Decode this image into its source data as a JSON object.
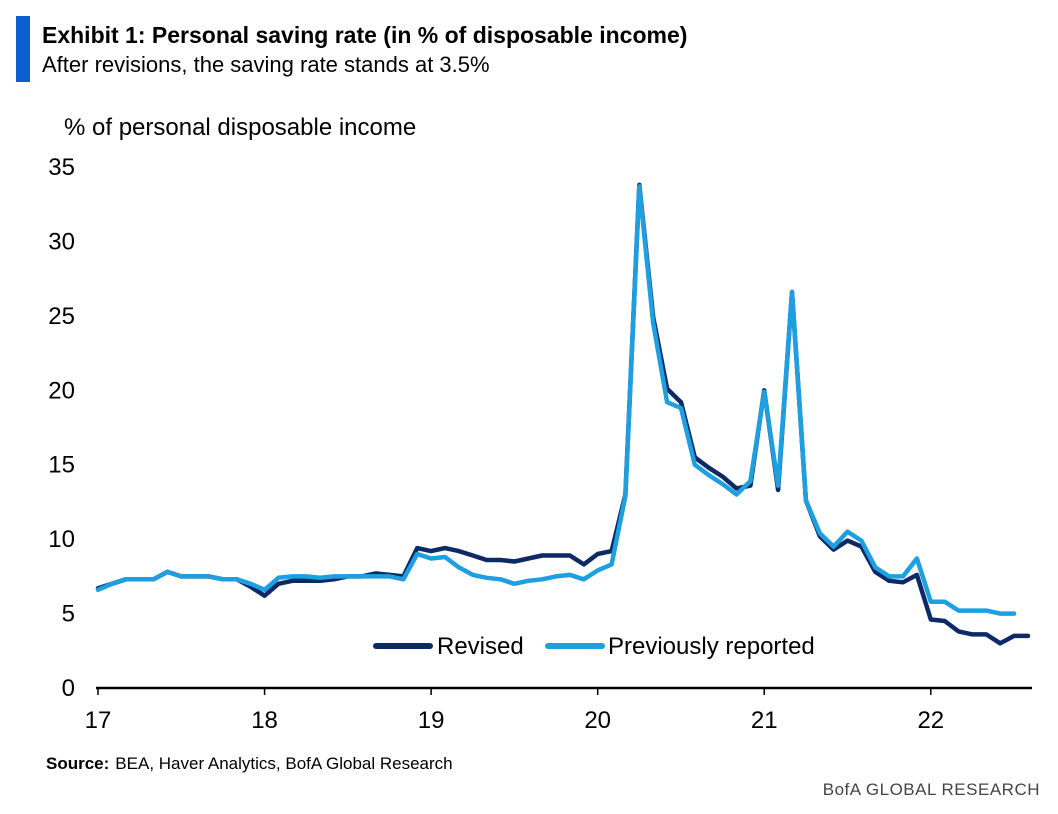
{
  "header": {
    "title": "Exhibit 1: Personal saving rate (in % of disposable income)",
    "subtitle": "After revisions, the saving rate stands at 3.5%",
    "accent_color": "#0a5fd1"
  },
  "footer": {
    "source_label": "Source:",
    "source_text": "BEA, Haver Analytics, BofA Global Research",
    "brand": "BofA GLOBAL RESEARCH"
  },
  "chart_data": {
    "type": "line",
    "title": "Exhibit 1: Personal saving rate (in % of disposable income)",
    "subtitle": "After revisions, the saving rate stands at 3.5%",
    "ylabel": "% of personal disposable income",
    "xlabel": "",
    "ylim": [
      0,
      35
    ],
    "yticks": [
      0,
      5,
      10,
      15,
      20,
      25,
      30,
      35
    ],
    "xlim": [
      "2017-01",
      "2022-08"
    ],
    "xticks": [
      {
        "label": "17",
        "date": "2017-01"
      },
      {
        "label": "18",
        "date": "2018-01"
      },
      {
        "label": "19",
        "date": "2019-01"
      },
      {
        "label": "20",
        "date": "2020-01"
      },
      {
        "label": "21",
        "date": "2021-01"
      },
      {
        "label": "22",
        "date": "2022-01"
      }
    ],
    "grid": false,
    "legend_position": "bottom-center",
    "series": [
      {
        "name": "Revised",
        "color": "#0c2a66",
        "start": "2017-01",
        "values": [
          6.7,
          7.0,
          7.3,
          7.3,
          7.3,
          7.8,
          7.5,
          7.5,
          7.5,
          7.3,
          7.3,
          6.8,
          6.2,
          7.0,
          7.2,
          7.2,
          7.2,
          7.3,
          7.5,
          7.5,
          7.7,
          7.6,
          7.5,
          9.4,
          9.2,
          9.4,
          9.2,
          8.9,
          8.6,
          8.6,
          8.5,
          8.7,
          8.9,
          8.9,
          8.9,
          8.3,
          9.0,
          9.2,
          13.0,
          33.8,
          24.9,
          20.1,
          19.2,
          15.5,
          14.8,
          14.2,
          13.4,
          13.6,
          20.0,
          13.3,
          26.6,
          12.6,
          10.2,
          9.3,
          9.9,
          9.5,
          7.8,
          7.2,
          7.1,
          7.6,
          4.6,
          4.5,
          3.8,
          3.6,
          3.6,
          3.0,
          3.5,
          3.5
        ]
      },
      {
        "name": "Previously reported",
        "color": "#1e9fe0",
        "start": "2017-01",
        "values": [
          6.6,
          7.0,
          7.3,
          7.3,
          7.3,
          7.8,
          7.5,
          7.5,
          7.5,
          7.3,
          7.3,
          7.0,
          6.6,
          7.4,
          7.5,
          7.5,
          7.4,
          7.5,
          7.5,
          7.5,
          7.5,
          7.5,
          7.3,
          9.0,
          8.7,
          8.8,
          8.1,
          7.6,
          7.4,
          7.3,
          7.0,
          7.2,
          7.3,
          7.5,
          7.6,
          7.3,
          7.9,
          8.3,
          12.9,
          33.7,
          24.5,
          19.2,
          18.8,
          15.0,
          14.3,
          13.7,
          13.0,
          13.9,
          19.9,
          13.6,
          26.6,
          12.6,
          10.4,
          9.5,
          10.5,
          9.9,
          8.1,
          7.5,
          7.5,
          8.7,
          5.8,
          5.8,
          5.2,
          5.2,
          5.2,
          5.0,
          5.0
        ]
      }
    ]
  }
}
